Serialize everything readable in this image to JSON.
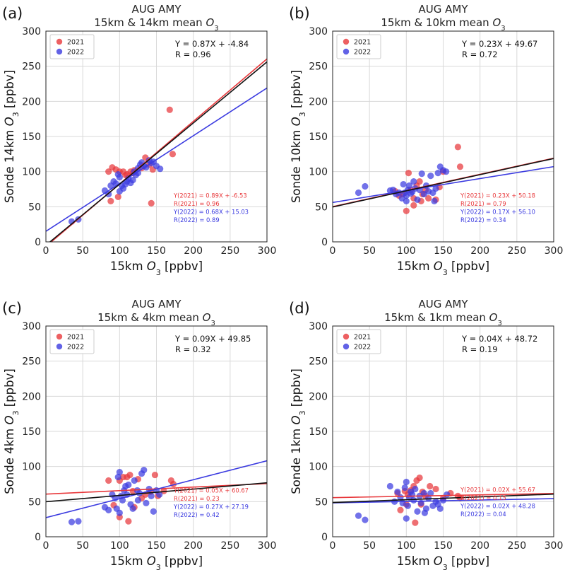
{
  "figure": {
    "colors": {
      "y2021": "#e8383b",
      "y2022": "#3b3be0",
      "all": "#111111",
      "grid": "#d9d9d9"
    }
  },
  "chart_data": [
    {
      "type": "scatter",
      "label": "(a)",
      "title_line1": "AUG AMY",
      "title_line2": "15km & 14km mean",
      "xlabel": "15km",
      "ylabel": "Sonde 14km",
      "xunit": "[ppbv]",
      "yunit": "[ppbv]",
      "xlim": [
        0,
        300
      ],
      "ylim": [
        0,
        300
      ],
      "ticks": [
        0,
        50,
        100,
        150,
        200,
        250,
        300
      ],
      "legend": [
        "2021",
        "2022"
      ],
      "overall_eq": "Y = 0.87X + -4.84",
      "overall_r": "R = 0.96",
      "fit_all": [
        0.87,
        -4.84
      ],
      "fit_2021": [
        0.89,
        -6.53
      ],
      "fit_2022": [
        0.68,
        15.03
      ],
      "stats": [
        "Y(2021) = 0.89X + -6.53",
        "R(2021) = 0.96",
        "Y(2022) = 0.68X + 15.03",
        "R(2022) = 0.89"
      ],
      "stats_pos": "lower-right",
      "series": [
        {
          "name": "2021",
          "points": [
            [
              85,
              100
            ],
            [
              90,
              106
            ],
            [
              95,
              103
            ],
            [
              100,
              100
            ],
            [
              105,
              100
            ],
            [
              110,
              96
            ],
            [
              115,
              100
            ],
            [
              120,
              102
            ],
            [
              130,
              105
            ],
            [
              135,
              120
            ],
            [
              140,
              110
            ],
            [
              145,
              103
            ],
            [
              88,
              58
            ],
            [
              98,
              64
            ],
            [
              143,
              55
            ],
            [
              168,
              188
            ],
            [
              172,
              125
            ],
            [
              108,
              95
            ],
            [
              118,
              98
            ]
          ]
        },
        {
          "name": "2022",
          "points": [
            [
              35,
              29
            ],
            [
              44,
              32
            ],
            [
              80,
              73
            ],
            [
              85,
              68
            ],
            [
              88,
              80
            ],
            [
              92,
              86
            ],
            [
              95,
              83
            ],
            [
              98,
              96
            ],
            [
              100,
              92
            ],
            [
              103,
              80
            ],
            [
              105,
              76
            ],
            [
              108,
              82
            ],
            [
              112,
              90
            ],
            [
              115,
              84
            ],
            [
              118,
              88
            ],
            [
              120,
              100
            ],
            [
              122,
              95
            ],
            [
              125,
              105
            ],
            [
              128,
              110
            ],
            [
              130,
              113
            ],
            [
              133,
              108
            ],
            [
              136,
              106
            ],
            [
              140,
              116
            ],
            [
              143,
              112
            ],
            [
              146,
              114
            ],
            [
              150,
              108
            ],
            [
              155,
              104
            ],
            [
              100,
              72
            ],
            [
              110,
              86
            ],
            [
              125,
              98
            ]
          ]
        }
      ]
    },
    {
      "type": "scatter",
      "label": "(b)",
      "title_line1": "AUG AMY",
      "title_line2": "15km & 10km mean",
      "xlabel": "15km",
      "ylabel": "Sonde 10km",
      "xunit": "[ppbv]",
      "yunit": "[ppbv]",
      "xlim": [
        0,
        300
      ],
      "ylim": [
        0,
        300
      ],
      "ticks": [
        0,
        50,
        100,
        150,
        200,
        250,
        300
      ],
      "legend": [
        "2021",
        "2022"
      ],
      "overall_eq": "Y = 0.23X + 49.67",
      "overall_r": "R = 0.72",
      "fit_all": [
        0.23,
        49.67
      ],
      "fit_2021": [
        0.23,
        50.18
      ],
      "fit_2022": [
        0.17,
        56.1
      ],
      "stats": [
        "Y(2021) = 0.23X + 50.18",
        "R(2021) = 0.79",
        "Y(2022) = 0.17X + 56.10",
        "R(2022) = 0.34"
      ],
      "stats_pos": "lower-right",
      "series": [
        {
          "name": "2021",
          "points": [
            [
              85,
              72
            ],
            [
              90,
              66
            ],
            [
              95,
              68
            ],
            [
              100,
              44
            ],
            [
              103,
              98
            ],
            [
              106,
              74
            ],
            [
              110,
              62
            ],
            [
              114,
              80
            ],
            [
              118,
              86
            ],
            [
              122,
              68
            ],
            [
              126,
              74
            ],
            [
              130,
              62
            ],
            [
              140,
              60
            ],
            [
              145,
              78
            ],
            [
              150,
              100
            ],
            [
              170,
              135
            ],
            [
              173,
              107
            ],
            [
              110,
              52
            ],
            [
              120,
              58
            ]
          ]
        },
        {
          "name": "2022",
          "points": [
            [
              35,
              70
            ],
            [
              44,
              79
            ],
            [
              78,
              73
            ],
            [
              82,
              74
            ],
            [
              86,
              68
            ],
            [
              90,
              70
            ],
            [
              94,
              62
            ],
            [
              96,
              82
            ],
            [
              98,
              70
            ],
            [
              100,
              66
            ],
            [
              102,
              74
            ],
            [
              104,
              80
            ],
            [
              106,
              69
            ],
            [
              108,
              71
            ],
            [
              110,
              86
            ],
            [
              112,
              76
            ],
            [
              115,
              60
            ],
            [
              118,
              74
            ],
            [
              121,
              97
            ],
            [
              124,
              68
            ],
            [
              127,
              80
            ],
            [
              130,
              72
            ],
            [
              133,
              94
            ],
            [
              136,
              70
            ],
            [
              140,
              76
            ],
            [
              143,
              98
            ],
            [
              146,
              107
            ],
            [
              150,
              102
            ],
            [
              154,
              100
            ],
            [
              100,
              58
            ],
            [
              138,
              58
            ]
          ]
        }
      ]
    },
    {
      "type": "scatter",
      "label": "(c)",
      "title_line1": "AUG AMY",
      "title_line2": "15km & 4km mean",
      "xlabel": "15km",
      "ylabel": "Sonde 4km",
      "xunit": "[ppbv]",
      "yunit": "[ppbv]",
      "xlim": [
        0,
        300
      ],
      "ylim": [
        0,
        300
      ],
      "ticks": [
        0,
        50,
        100,
        150,
        200,
        250,
        300
      ],
      "legend": [
        "2021",
        "2022"
      ],
      "overall_eq": "Y = 0.09X + 49.85",
      "overall_r": "R = 0.32",
      "fit_all": [
        0.09,
        49.85
      ],
      "fit_2021": [
        0.05,
        60.67
      ],
      "fit_2022": [
        0.27,
        27.19
      ],
      "stats": [
        "Y(2021) = 0.05X + 60.67",
        "R(2021) = 0.23",
        "Y(2022) = 0.27X + 27.19",
        "R(2022) = 0.42"
      ],
      "stats_pos": "lower-right",
      "series": [
        {
          "name": "2021",
          "points": [
            [
              85,
              80
            ],
            [
              92,
              45
            ],
            [
              100,
              80
            ],
            [
              105,
              85
            ],
            [
              110,
              85
            ],
            [
              114,
              88
            ],
            [
              118,
              65
            ],
            [
              125,
              82
            ],
            [
              130,
              55
            ],
            [
              135,
              60
            ],
            [
              142,
              64
            ],
            [
              148,
              88
            ],
            [
              152,
              58
            ],
            [
              170,
              80
            ],
            [
              173,
              75
            ],
            [
              112,
              22
            ],
            [
              100,
              28
            ],
            [
              120,
              42
            ],
            [
              160,
              65
            ]
          ]
        },
        {
          "name": "2022",
          "points": [
            [
              35,
              21
            ],
            [
              44,
              22
            ],
            [
              80,
              42
            ],
            [
              85,
              38
            ],
            [
              90,
              60
            ],
            [
              94,
              55
            ],
            [
              96,
              40
            ],
            [
              98,
              85
            ],
            [
              100,
              92
            ],
            [
              102,
              58
            ],
            [
              104,
              52
            ],
            [
              106,
              66
            ],
            [
              108,
              72
            ],
            [
              110,
              60
            ],
            [
              112,
              74
            ],
            [
              115,
              46
            ],
            [
              118,
              40
            ],
            [
              120,
              80
            ],
            [
              124,
              66
            ],
            [
              127,
              62
            ],
            [
              130,
              90
            ],
            [
              133,
              95
            ],
            [
              136,
              48
            ],
            [
              140,
              68
            ],
            [
              143,
              58
            ],
            [
              146,
              36
            ],
            [
              150,
              66
            ],
            [
              154,
              60
            ],
            [
              100,
              34
            ],
            [
              125,
              52
            ]
          ]
        }
      ]
    },
    {
      "type": "scatter",
      "label": "(d)",
      "title_line1": "AUG AMY",
      "title_line2": "15km & 1km mean",
      "xlabel": "15km",
      "ylabel": "Sonde 1km",
      "xunit": "[ppbv]",
      "yunit": "[ppbv]",
      "xlim": [
        0,
        300
      ],
      "ylim": [
        0,
        300
      ],
      "ticks": [
        0,
        50,
        100,
        150,
        200,
        250,
        300
      ],
      "legend": [
        "2021",
        "2022"
      ],
      "overall_eq": "Y = 0.04X + 48.72",
      "overall_r": "R = 0.19",
      "fit_all": [
        0.04,
        48.72
      ],
      "fit_2021": [
        0.02,
        55.67
      ],
      "fit_2022": [
        0.02,
        48.28
      ],
      "stats": [
        "Y(2021) = 0.02X + 55.67",
        "R(2021) = 0.15",
        "Y(2022) = 0.02X + 48.28",
        "R(2022) = 0.04"
      ],
      "stats_pos": "right",
      "series": [
        {
          "name": "2021",
          "points": [
            [
              88,
              62
            ],
            [
              92,
              38
            ],
            [
              98,
              65
            ],
            [
              102,
              60
            ],
            [
              106,
              66
            ],
            [
              110,
              72
            ],
            [
              114,
              80
            ],
            [
              118,
              84
            ],
            [
              122,
              64
            ],
            [
              126,
              58
            ],
            [
              132,
              72
            ],
            [
              140,
              68
            ],
            [
              150,
              55
            ],
            [
              170,
              58
            ],
            [
              173,
              55
            ],
            [
              112,
              20
            ],
            [
              100,
              46
            ],
            [
              120,
              46
            ],
            [
              160,
              62
            ]
          ]
        },
        {
          "name": "2022",
          "points": [
            [
              35,
              30
            ],
            [
              44,
              24
            ],
            [
              78,
              72
            ],
            [
              84,
              50
            ],
            [
              88,
              64
            ],
            [
              92,
              56
            ],
            [
              95,
              48
            ],
            [
              98,
              70
            ],
            [
              100,
              78
            ],
            [
              102,
              44
            ],
            [
              104,
              56
            ],
            [
              106,
              64
            ],
            [
              108,
              60
            ],
            [
              110,
              52
            ],
            [
              112,
              68
            ],
            [
              115,
              36
            ],
            [
              118,
              58
            ],
            [
              120,
              48
            ],
            [
              124,
              62
            ],
            [
              127,
              40
            ],
            [
              130,
              55
            ],
            [
              133,
              62
            ],
            [
              136,
              44
            ],
            [
              140,
              50
            ],
            [
              143,
              46
            ],
            [
              146,
              40
            ],
            [
              150,
              52
            ],
            [
              155,
              60
            ],
            [
              100,
              26
            ],
            [
              125,
              34
            ]
          ]
        }
      ]
    }
  ]
}
